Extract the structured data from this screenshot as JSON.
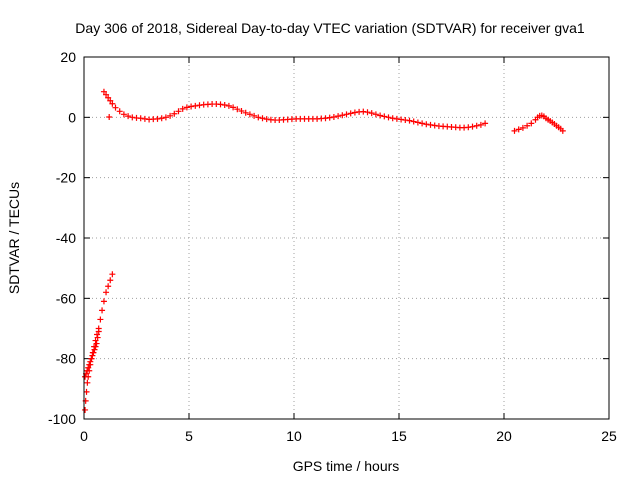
{
  "chart_data": {
    "type": "scatter",
    "title": "Day 306 of 2018, Sidereal Day-to-day VTEC variation (SDTVAR) for receiver gva1",
    "xlabel": "GPS time / hours",
    "ylabel": "SDTVAR / TECUs",
    "xlim": [
      0,
      25
    ],
    "ylim": [
      -100,
      20
    ],
    "xticks": [
      "0",
      "5",
      "10",
      "15",
      "20",
      "25"
    ],
    "yticks": [
      "20",
      "0",
      "-20",
      "-40",
      "-60",
      "-80",
      "-100"
    ],
    "grid": true,
    "marker": "+",
    "color": "#ff0000",
    "series": [
      {
        "name": "main-track",
        "x": [
          0.95,
          1.05,
          1.15,
          1.25,
          1.35,
          1.5,
          1.7,
          1.9,
          2.1,
          2.3,
          2.5,
          2.7,
          2.9,
          3.1,
          3.3,
          3.5,
          3.7,
          3.9,
          4.1,
          4.3,
          4.5,
          4.7,
          4.9,
          5.1,
          5.3,
          5.5,
          5.7,
          5.9,
          6.1,
          6.3,
          6.5,
          6.7,
          6.9,
          7.1,
          7.3,
          7.5,
          7.7,
          7.9,
          8.1,
          8.3,
          8.5,
          8.7,
          8.9,
          9.1,
          9.3,
          9.5,
          9.7,
          9.9,
          10.1,
          10.3,
          10.5,
          10.7,
          10.9,
          11.1,
          11.3,
          11.5,
          11.7,
          11.9,
          12.1,
          12.3,
          12.5,
          12.7,
          12.9,
          13.1,
          13.3,
          13.5,
          13.7,
          13.9,
          14.1,
          14.3,
          14.5,
          14.7,
          14.9,
          15.1,
          15.3,
          15.5,
          15.7,
          15.9,
          16.1,
          16.3,
          16.5,
          16.7,
          16.9,
          17.1,
          17.3,
          17.5,
          17.7,
          17.9,
          18.1,
          18.3,
          18.5,
          18.7,
          18.9,
          19.1
        ],
        "y": [
          8.5,
          7.5,
          6.5,
          5.5,
          4.5,
          3.2,
          2.0,
          1.0,
          0.4,
          0.0,
          -0.2,
          -0.3,
          -0.5,
          -0.7,
          -0.6,
          -0.5,
          -0.3,
          0.0,
          0.5,
          1.2,
          2.0,
          2.8,
          3.3,
          3.6,
          3.8,
          4.0,
          4.2,
          4.3,
          4.4,
          4.4,
          4.3,
          4.1,
          3.8,
          3.3,
          2.7,
          2.1,
          1.5,
          1.0,
          0.5,
          0.0,
          -0.3,
          -0.6,
          -0.8,
          -0.9,
          -0.9,
          -0.8,
          -0.7,
          -0.6,
          -0.5,
          -0.5,
          -0.5,
          -0.5,
          -0.5,
          -0.5,
          -0.4,
          -0.3,
          -0.1,
          0.1,
          0.4,
          0.7,
          1.0,
          1.3,
          1.6,
          1.8,
          1.9,
          1.7,
          1.4,
          1.0,
          0.6,
          0.3,
          0.0,
          -0.3,
          -0.5,
          -0.7,
          -0.9,
          -1.1,
          -1.4,
          -1.7,
          -2.0,
          -2.3,
          -2.5,
          -2.7,
          -2.9,
          -3.0,
          -3.1,
          -3.2,
          -3.3,
          -3.4,
          -3.4,
          -3.3,
          -3.1,
          -2.8,
          -2.5,
          -2.0
        ]
      },
      {
        "name": "initial-drop",
        "x": [
          0.05,
          0.08,
          0.12,
          0.16,
          0.2,
          0.25,
          0.3,
          0.36,
          0.42,
          0.48,
          0.55,
          0.62,
          0.7,
          0.78,
          0.86,
          0.95,
          1.05,
          1.15,
          1.25,
          1.35
        ],
        "y": [
          -97,
          -94,
          -91,
          -88,
          -86,
          -84,
          -82,
          -80,
          -78,
          -76,
          -74,
          -72,
          -70,
          -67,
          -64,
          -61,
          -58,
          -56,
          -54,
          -52
        ]
      },
      {
        "name": "lower-fringe",
        "x": [
          0.05,
          0.1,
          0.15,
          0.2,
          0.25,
          0.3,
          0.35,
          0.4,
          0.45,
          0.5,
          0.55,
          0.6,
          0.65,
          0.7
        ],
        "y": [
          -86,
          -85,
          -84,
          -83,
          -82,
          -81,
          -80,
          -79,
          -78,
          -77,
          -76,
          -75,
          -73,
          -71
        ]
      },
      {
        "name": "outlier",
        "x": [
          1.2
        ],
        "y": [
          0.1
        ]
      },
      {
        "name": "late-track",
        "x": [
          20.5,
          20.7,
          20.9,
          21.1,
          21.3,
          21.5,
          21.6,
          21.7,
          21.8,
          21.9,
          22.0,
          22.1,
          22.2,
          22.3,
          22.4,
          22.5,
          22.6,
          22.7,
          22.8
        ],
        "y": [
          -4.5,
          -4.0,
          -3.5,
          -2.8,
          -2.0,
          -0.8,
          0.0,
          0.5,
          0.6,
          0.3,
          -0.3,
          -0.8,
          -1.2,
          -1.7,
          -2.2,
          -2.8,
          -3.3,
          -3.8,
          -4.5
        ]
      }
    ]
  }
}
